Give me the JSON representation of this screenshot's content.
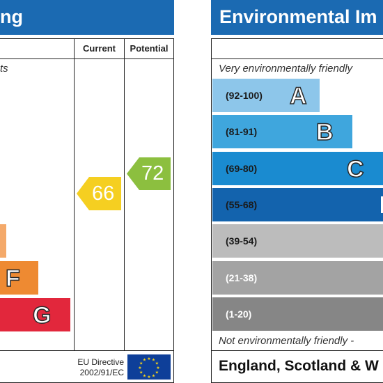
{
  "left_panel": {
    "title_fragment": "ng",
    "col_current": "Current",
    "col_potential": "Potential",
    "top_text_fragment": "ts",
    "bands": [
      {
        "letter": "",
        "color": "#f4a96a"
      },
      {
        "letter": "F",
        "color": "#ee8a32"
      },
      {
        "letter": "G",
        "color": "#e2273c"
      }
    ],
    "current": {
      "value": "66",
      "color": "#f5cf21"
    },
    "potential": {
      "value": "72",
      "color": "#8cbf3f"
    },
    "eu_directive_line1": "EU Directive",
    "eu_directive_line2": "2002/91/EC",
    "eu_flag_color": "#0e3f99",
    "eu_star_color": "#f7d417"
  },
  "right_panel": {
    "title": "Environmental Im",
    "top_text": "Very environmentally friendly",
    "bottom_text": "Not environmentally friendly -",
    "bands": [
      {
        "range": "(92-100)",
        "letter": "A",
        "color": "#8dc6ea"
      },
      {
        "range": "(81-91)",
        "letter": "B",
        "color": "#3fa6dd"
      },
      {
        "range": "(69-80)",
        "letter": "C",
        "color": "#1a8bd0"
      },
      {
        "range": "(55-68)",
        "letter": "",
        "color": "#1363ad"
      },
      {
        "range": "(39-54)",
        "letter": "",
        "color": "#bcbcbc"
      },
      {
        "range": "(21-38)",
        "letter": "",
        "color": "#a3a3a3"
      },
      {
        "range": "(1-20)",
        "letter": "",
        "color": "#868686"
      }
    ],
    "footer": "England, Scotland & W"
  }
}
